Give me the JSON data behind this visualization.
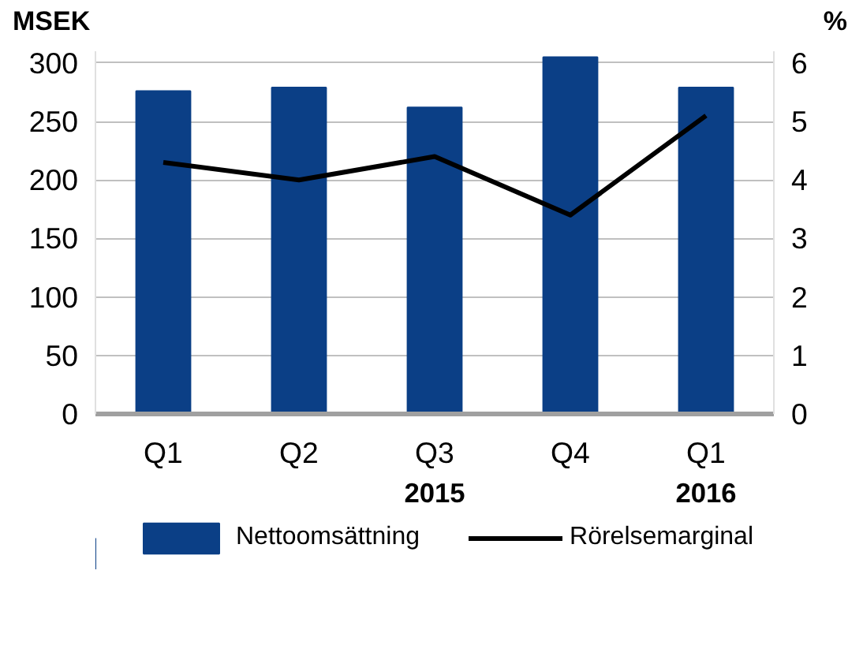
{
  "chart_data": {
    "type": "bar",
    "ylabel": "MSEK",
    "y2label": "%",
    "categories": [
      "Q1",
      "Q2",
      "Q3",
      "Q4",
      "Q1"
    ],
    "series": [
      {
        "name": "Nettoomsättning",
        "color": "#0b3f86",
        "values": [
          276,
          279,
          262,
          305,
          279
        ]
      },
      {
        "name": "Rörelsemarginal",
        "type": "line",
        "axis": "y2",
        "color": "#000000",
        "values": [
          4.3,
          4.0,
          4.4,
          3.4,
          5.1
        ]
      }
    ],
    "ylim": [
      0,
      310
    ],
    "yticks": [
      0,
      50,
      100,
      150,
      200,
      250,
      300
    ],
    "y2lim": [
      0,
      6.2
    ],
    "y2ticks": [
      0,
      1,
      2,
      3,
      4,
      5,
      6
    ],
    "annotations": [
      "2015",
      "2016"
    ],
    "grid": "y",
    "legend": "bottom"
  }
}
